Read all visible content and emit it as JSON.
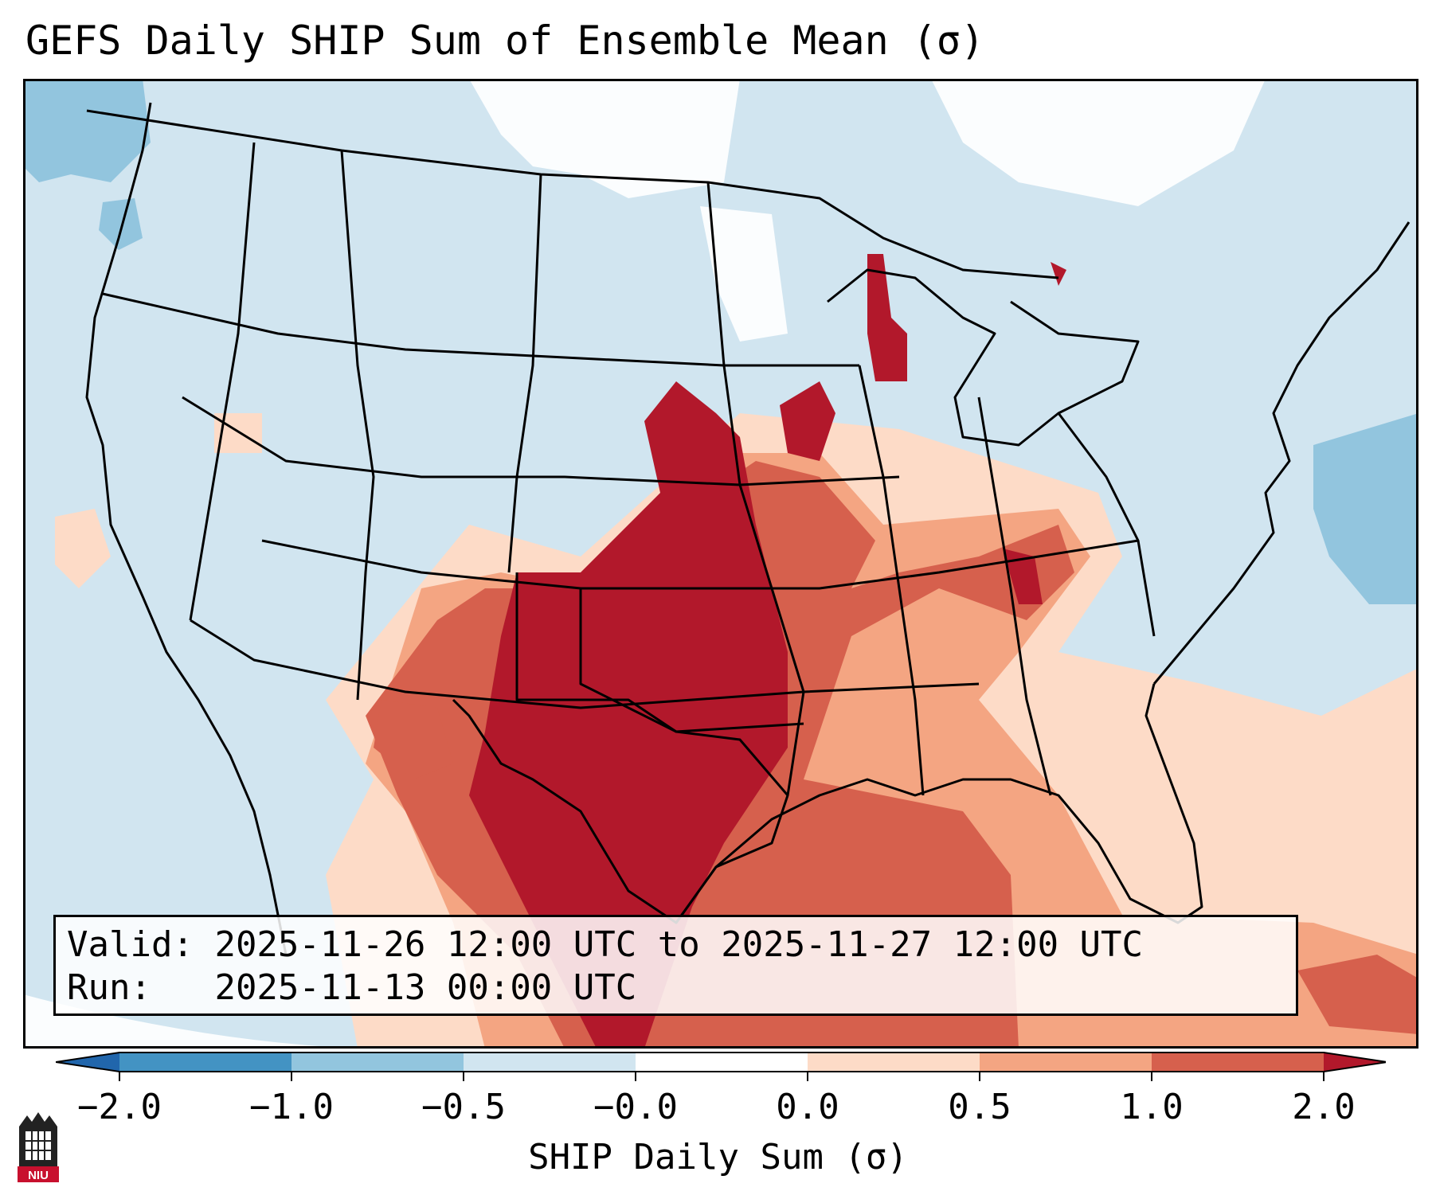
{
  "title": "GEFS Daily SHIP Sum of Ensemble Mean (σ)",
  "info": {
    "valid_label": "Valid:",
    "valid_value": "2025-11-26 12:00 UTC to 2025-11-27 12:00 UTC",
    "run_label": "Run:",
    "run_value": "2025-11-13 00:00 UTC"
  },
  "colorbar": {
    "label": "SHIP Daily Sum (σ)",
    "ticks": [
      "−2.0",
      "−1.0",
      "−0.5",
      "−0.0",
      "0.0",
      "0.5",
      "1.0",
      "2.0"
    ],
    "bins": [
      {
        "from": -2.0,
        "to": -1.0,
        "color": "#4393c3"
      },
      {
        "from": -1.0,
        "to": -0.5,
        "color": "#92c5de"
      },
      {
        "from": -0.5,
        "to": -0.0,
        "color": "#d1e5f0"
      },
      {
        "from": -0.0,
        "to": 0.0,
        "color": "#ffffff"
      },
      {
        "from": 0.0,
        "to": 0.5,
        "color": "#fddbc7"
      },
      {
        "from": 0.5,
        "to": 1.0,
        "color": "#f4a582"
      },
      {
        "from": 1.0,
        "to": 2.0,
        "color": "#d6604d"
      }
    ],
    "extend_low_color": "#2166ac",
    "extend_high_color": "#b2182b"
  },
  "map_colors": {
    "background": "#d1e5f0",
    "white": "#ffffff",
    "light_blue": "#92c5de",
    "light_red": "#fddbc7",
    "mid_red": "#f4a582",
    "red": "#d6604d",
    "dark_red": "#b2182b"
  },
  "logo": {
    "text": "NIU"
  }
}
